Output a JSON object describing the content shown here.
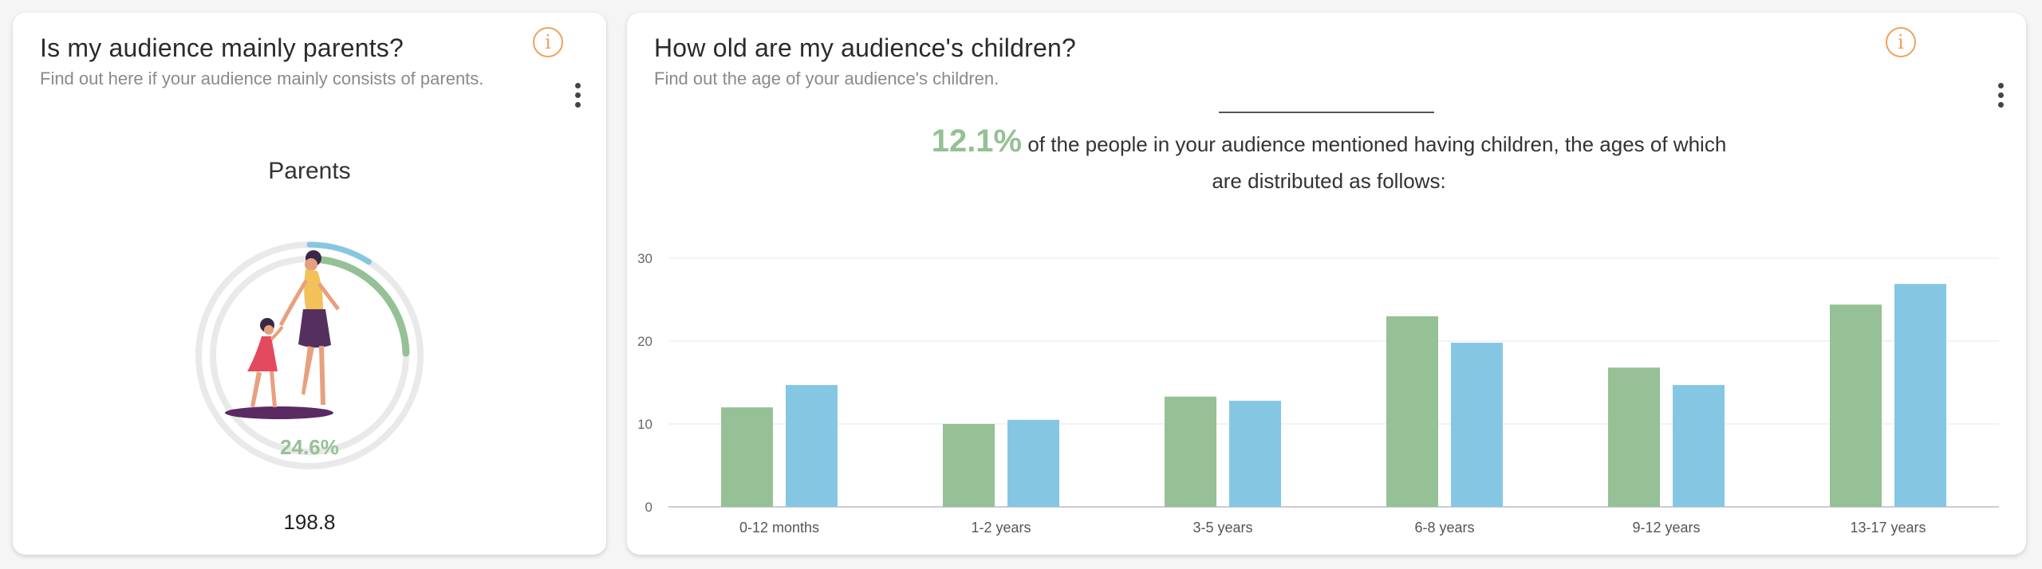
{
  "parents_card": {
    "title": "Is my audience mainly parents?",
    "subtitle": "Find out here if your audience mainly consists of parents.",
    "info_glyph": "i",
    "chart_label": "Parents",
    "percent_label": "24.6%",
    "count_label": "198.8",
    "colors": {
      "green": "#96c095",
      "blue": "#85c7e3",
      "track": "#e9e9e9"
    },
    "rings": {
      "outer_blue_fraction": 0.09,
      "inner_green_fraction": 0.246
    }
  },
  "children_card": {
    "title": "How old are my audience's children?",
    "subtitle": "Find out the age of your audience's children.",
    "info_glyph": "i",
    "headline_percent": "12.1%",
    "headline_text": " of the people in your audience mentioned having children, the ages of which are distributed as follows:"
  },
  "chart_data": {
    "type": "bar",
    "categories": [
      "0-12 months",
      "1-2 years",
      "3-5 years",
      "6-8 years",
      "9-12 years",
      "13-17 years"
    ],
    "series": [
      {
        "values": [
          12.0,
          10.0,
          13.3,
          23.0,
          16.8,
          24.4
        ],
        "color": "#96c095"
      },
      {
        "values": [
          14.7,
          10.5,
          12.8,
          19.8,
          14.7,
          26.9
        ],
        "color": "#85c7e3"
      }
    ],
    "yticks": [
      "0",
      "10",
      "20",
      "30"
    ],
    "ylim": [
      0,
      30
    ],
    "grid": true,
    "legend": "none"
  }
}
